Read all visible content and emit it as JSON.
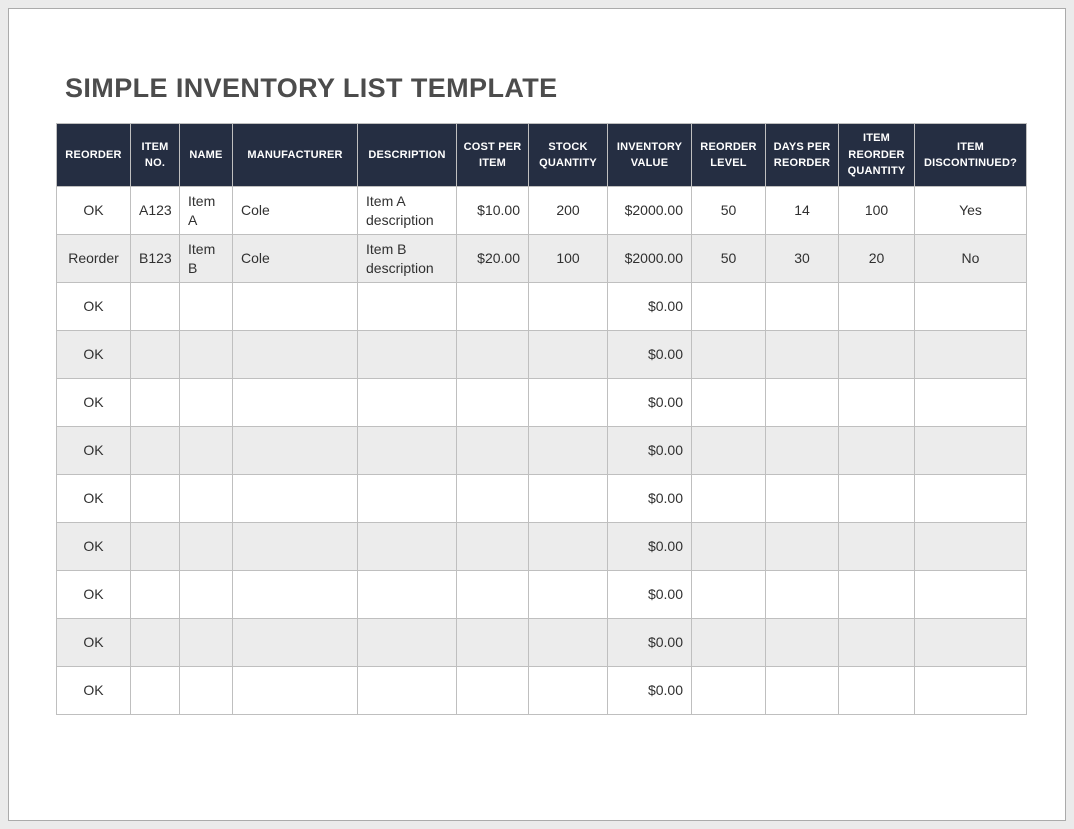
{
  "title": "SIMPLE INVENTORY LIST TEMPLATE",
  "colors": {
    "canvas_bg": "#EBEBEB",
    "page_bg": "#FFFFFF",
    "title_text": "#4C4C4C",
    "header_bg": "#252E42",
    "header_text": "#FFFFFF",
    "row_alt_bg": "#ECECEC",
    "grid_line": "#BFBFBF",
    "cell_text": "#303030"
  },
  "table": {
    "columns": [
      {
        "key": "reorder",
        "label": "REORDER",
        "align": "center"
      },
      {
        "key": "item-no",
        "label": "ITEM NO.",
        "align": "center"
      },
      {
        "key": "name",
        "label": "NAME",
        "align": "left"
      },
      {
        "key": "manufacturer",
        "label": "MANUFACTURER",
        "align": "left"
      },
      {
        "key": "description",
        "label": "DESCRIPTION",
        "align": "left"
      },
      {
        "key": "cost-per-item",
        "label": "COST PER ITEM",
        "align": "right"
      },
      {
        "key": "stock-quantity",
        "label": "STOCK QUANTITY",
        "align": "center"
      },
      {
        "key": "inventory-value",
        "label": "INVENTORY VALUE",
        "align": "right"
      },
      {
        "key": "reorder-level",
        "label": "REORDER LEVEL",
        "align": "center"
      },
      {
        "key": "days-per-reorder",
        "label": "DAYS PER REORDER",
        "align": "center"
      },
      {
        "key": "item-reorder-quantity",
        "label": "ITEM REORDER QUANTITY",
        "align": "center"
      },
      {
        "key": "item-discontinued",
        "label": "ITEM DISCONTINUED?",
        "align": "center"
      }
    ],
    "rows": [
      {
        "cells": [
          "OK",
          "A123",
          "Item A",
          "Cole",
          "Item A description",
          "$10.00",
          "200",
          "$2000.00",
          "50",
          "14",
          "100",
          "Yes"
        ]
      },
      {
        "cells": [
          "Reorder",
          "B123",
          "Item B",
          "Cole",
          "Item B description",
          "$20.00",
          "100",
          "$2000.00",
          "50",
          "30",
          "20",
          "No"
        ]
      },
      {
        "cells": [
          "OK",
          "",
          "",
          "",
          "",
          "",
          "",
          "$0.00",
          "",
          "",
          "",
          ""
        ]
      },
      {
        "cells": [
          "OK",
          "",
          "",
          "",
          "",
          "",
          "",
          "$0.00",
          "",
          "",
          "",
          ""
        ]
      },
      {
        "cells": [
          "OK",
          "",
          "",
          "",
          "",
          "",
          "",
          "$0.00",
          "",
          "",
          "",
          ""
        ]
      },
      {
        "cells": [
          "OK",
          "",
          "",
          "",
          "",
          "",
          "",
          "$0.00",
          "",
          "",
          "",
          ""
        ]
      },
      {
        "cells": [
          "OK",
          "",
          "",
          "",
          "",
          "",
          "",
          "$0.00",
          "",
          "",
          "",
          ""
        ]
      },
      {
        "cells": [
          "OK",
          "",
          "",
          "",
          "",
          "",
          "",
          "$0.00",
          "",
          "",
          "",
          ""
        ]
      },
      {
        "cells": [
          "OK",
          "",
          "",
          "",
          "",
          "",
          "",
          "$0.00",
          "",
          "",
          "",
          ""
        ]
      },
      {
        "cells": [
          "OK",
          "",
          "",
          "",
          "",
          "",
          "",
          "$0.00",
          "",
          "",
          "",
          ""
        ]
      },
      {
        "cells": [
          "OK",
          "",
          "",
          "",
          "",
          "",
          "",
          "$0.00",
          "",
          "",
          "",
          ""
        ]
      }
    ]
  }
}
